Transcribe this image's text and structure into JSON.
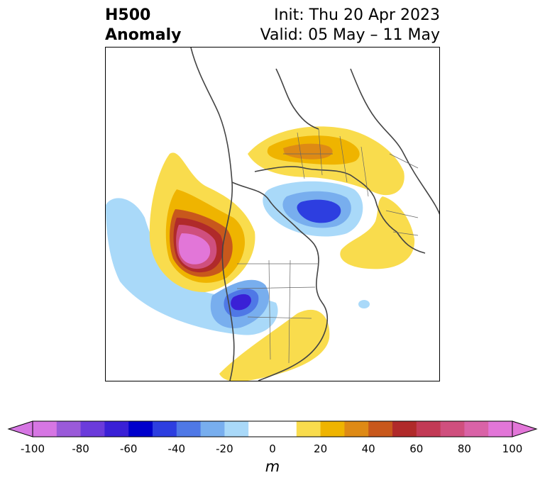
{
  "title": {
    "main_line1": "H500",
    "main_line2": "Anomaly",
    "init": "Init: Thu 20 Apr 2023",
    "valid": "Valid: 05 May – 11 May"
  },
  "colorbar": {
    "unit": "m",
    "ticks": [
      "-100",
      "-80",
      "-60",
      "-40",
      "-20",
      "0",
      "20",
      "40",
      "60",
      "80",
      "100"
    ],
    "colors": [
      "#d676e3",
      "#9a5ad9",
      "#6b3bdb",
      "#3a20d6",
      "#0000cc",
      "#2d3ee0",
      "#4f78e6",
      "#78aeee",
      "#a9d9f9",
      "#ffffff",
      "#ffffff",
      "#f9dc4d",
      "#efb400",
      "#de8a15",
      "#c8581c",
      "#b02a2a",
      "#c23a55",
      "#cf4f7e",
      "#d963a7",
      "#e276d8"
    ],
    "min": -100,
    "max": 100
  },
  "map": {
    "projection": "north polar stereographic",
    "anomalies": [
      {
        "name": "northeast-pacific-ridge",
        "sign": "positive",
        "peak_m": 100
      },
      {
        "name": "western-us-trough",
        "sign": "negative",
        "peak_m": -60
      },
      {
        "name": "arctic-low",
        "sign": "negative",
        "peak_m": -60
      },
      {
        "name": "siberian-ridge",
        "sign": "positive",
        "peak_m": 40
      },
      {
        "name": "eastern-us-ridge",
        "sign": "positive",
        "peak_m": 30
      },
      {
        "name": "scandinavian-ridge",
        "sign": "positive",
        "peak_m": 20
      }
    ]
  }
}
